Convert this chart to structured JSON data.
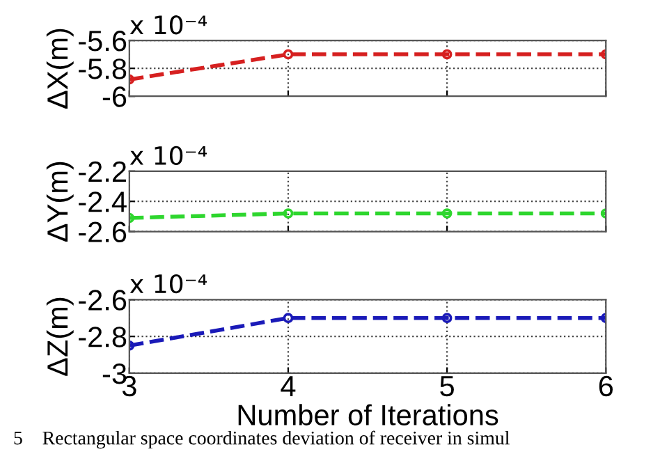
{
  "chart_data": [
    {
      "type": "line",
      "ylabel": "ΔX(m)",
      "annotations": [
        "x 10⁻⁴"
      ],
      "x": [
        3,
        4,
        5,
        6
      ],
      "xlim": [
        3,
        6
      ],
      "xticks": [
        3,
        4,
        5,
        6
      ],
      "ylim": [
        -6,
        -5.6
      ],
      "yticks": [
        -6,
        -5.8,
        -5.6
      ],
      "tick_labels": "y",
      "grid": true,
      "marker": "circle",
      "line_style": "dashed",
      "series": [
        {
          "color": "#d62020",
          "values": [
            -5.88,
            -5.7,
            -5.7,
            -5.7
          ]
        }
      ]
    },
    {
      "type": "line",
      "ylabel": "ΔY(m)",
      "annotations": [
        "x 10⁻⁴"
      ],
      "x": [
        3,
        4,
        5,
        6
      ],
      "xlim": [
        3,
        6
      ],
      "xticks": [
        3,
        4,
        5,
        6
      ],
      "ylim": [
        -2.6,
        -2.2
      ],
      "yticks": [
        -2.6,
        -2.4,
        -2.2
      ],
      "tick_labels": "y",
      "grid": true,
      "marker": "circle",
      "line_style": "dashed",
      "series": [
        {
          "color": "#2ed62e",
          "values": [
            -2.51,
            -2.48,
            -2.48,
            -2.48
          ]
        }
      ]
    },
    {
      "type": "line",
      "ylabel": "ΔZ(m)",
      "xlabel": "Number of Iterations",
      "annotations": [
        "x 10⁻⁴",
        "5    Rectangular space coordinates deviation of receiver in simul"
      ],
      "x": [
        3,
        4,
        5,
        6
      ],
      "xlim": [
        3,
        6
      ],
      "xticks": [
        3,
        4,
        5,
        6
      ],
      "ylim": [
        -3,
        -2.6
      ],
      "yticks": [
        -3,
        -2.8,
        -2.6
      ],
      "grid": true,
      "marker": "circle",
      "line_style": "dashed",
      "series": [
        {
          "color": "#1a1ab8",
          "values": [
            -2.85,
            -2.7,
            -2.7,
            -2.7
          ]
        }
      ]
    }
  ]
}
